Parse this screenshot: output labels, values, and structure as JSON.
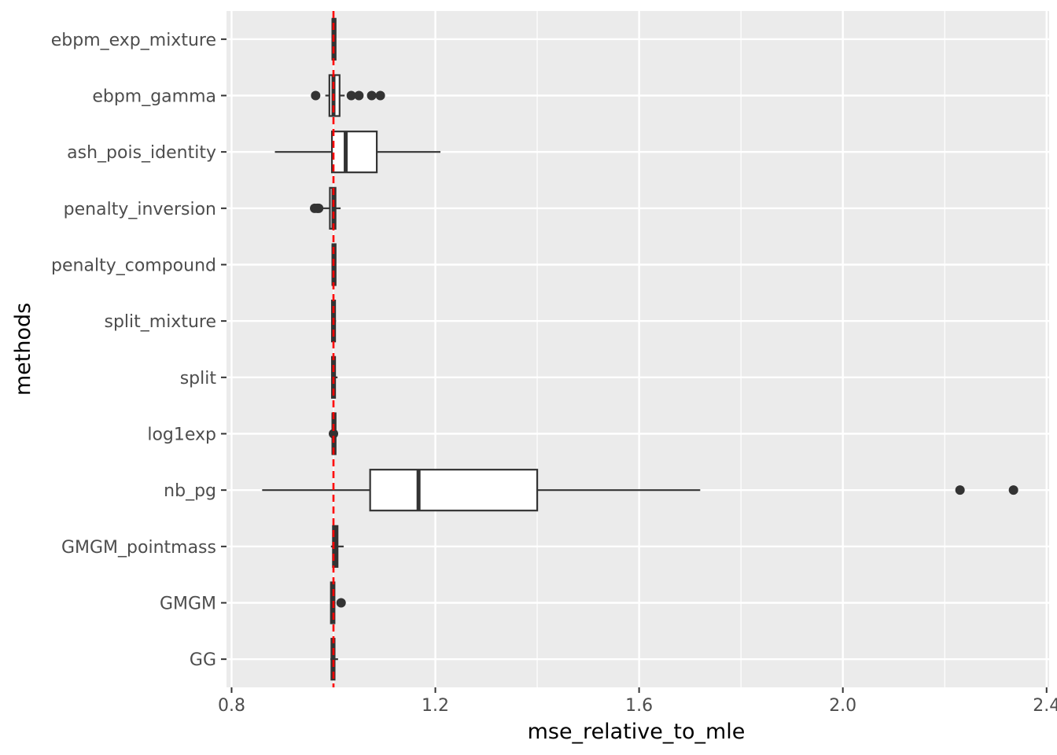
{
  "chart_data": {
    "type": "boxplot",
    "orientation": "horizontal",
    "xlabel": "mse_relative_to_mle",
    "ylabel": "methods",
    "xlim": [
      0.79,
      2.405
    ],
    "x_ticks": [
      0.8,
      1.2,
      1.6,
      2.0,
      2.4
    ],
    "x_tick_labels": [
      "0.8",
      "1.2",
      "1.6",
      "2.0",
      "2.4"
    ],
    "reference_line": {
      "x": 1.0,
      "color": "#ff0000",
      "style": "dashed"
    },
    "grid": true,
    "categories": [
      "ebpm_exp_mixture",
      "ebpm_gamma",
      "ash_pois_identity",
      "penalty_inversion",
      "penalty_compound",
      "split_mixture",
      "split",
      "log1exp",
      "nb_pg",
      "GMGM_pointmass",
      "GMGM",
      "GG"
    ],
    "boxes": [
      {
        "method": "ebpm_exp_mixture",
        "whisker_low": 0.997,
        "q1": 0.998,
        "median": 1.0,
        "q3": 1.002,
        "whisker_high": 1.004,
        "outliers": []
      },
      {
        "method": "ebpm_gamma",
        "whisker_low": 0.984,
        "q1": 0.992,
        "median": 1.0,
        "q3": 1.012,
        "whisker_high": 1.022,
        "outliers": [
          0.965,
          1.035,
          1.05,
          1.075,
          1.092
        ]
      },
      {
        "method": "ash_pois_identity",
        "whisker_low": 0.885,
        "q1": 0.997,
        "median": 1.024,
        "q3": 1.085,
        "whisker_high": 1.21,
        "outliers": []
      },
      {
        "method": "penalty_inversion",
        "whisker_low": 0.975,
        "q1": 0.993,
        "median": 1.0,
        "q3": 1.004,
        "whisker_high": 1.014,
        "outliers": [
          0.963,
          0.968,
          0.971
        ]
      },
      {
        "method": "penalty_compound",
        "whisker_low": 0.997,
        "q1": 0.998,
        "median": 1.0,
        "q3": 1.002,
        "whisker_high": 1.003,
        "outliers": []
      },
      {
        "method": "split_mixture",
        "whisker_low": 0.996,
        "q1": 0.997,
        "median": 1.0,
        "q3": 1.003,
        "whisker_high": 1.005,
        "outliers": []
      },
      {
        "method": "split",
        "whisker_low": 0.996,
        "q1": 0.997,
        "median": 1.0,
        "q3": 1.003,
        "whisker_high": 1.008,
        "outliers": []
      },
      {
        "method": "log1exp",
        "whisker_low": 0.997,
        "q1": 0.998,
        "median": 1.0,
        "q3": 1.002,
        "whisker_high": 1.004,
        "outliers": [
          1.0
        ]
      },
      {
        "method": "nb_pg",
        "whisker_low": 0.86,
        "q1": 1.072,
        "median": 1.167,
        "q3": 1.4,
        "whisker_high": 1.72,
        "outliers": [
          2.23,
          2.335
        ]
      },
      {
        "method": "GMGM_pointmass",
        "whisker_low": 0.995,
        "q1": 0.999,
        "median": 1.004,
        "q3": 1.008,
        "whisker_high": 1.02,
        "outliers": []
      },
      {
        "method": "GMGM",
        "whisker_low": 0.994,
        "q1": 0.995,
        "median": 0.998,
        "q3": 1.002,
        "whisker_high": 1.004,
        "outliers": [
          1.015
        ]
      },
      {
        "method": "GG",
        "whisker_low": 0.994,
        "q1": 0.996,
        "median": 0.999,
        "q3": 1.002,
        "whisker_high": 1.009,
        "outliers": []
      }
    ],
    "colors": {
      "panel_background": "#ebebeb",
      "grid_line": "#ffffff",
      "box_fill": "#ffffff",
      "box_stroke": "#333333",
      "outlier": "#333333",
      "axis_tick": "#333333"
    }
  }
}
